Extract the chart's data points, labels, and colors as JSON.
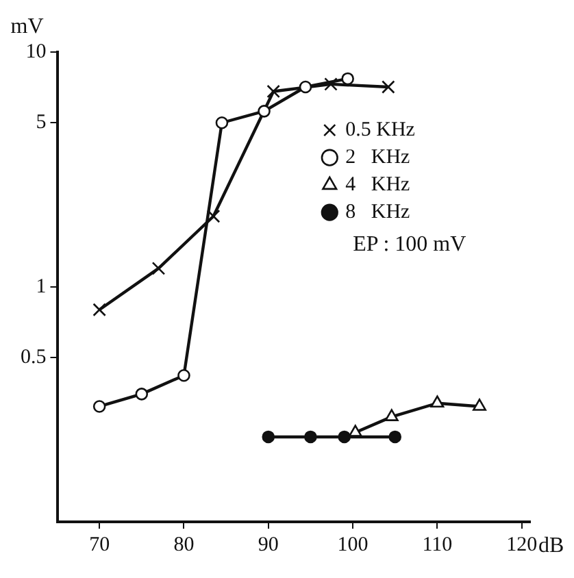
{
  "chart_data": {
    "type": "line",
    "xlabel": "dB",
    "ylabel": "mV",
    "log": "y",
    "xlim": [
      65,
      121
    ],
    "ylim": [
      0.1,
      10
    ],
    "xticks": [
      70,
      80,
      90,
      100,
      110,
      120
    ],
    "yticks": [
      0.5,
      1,
      5,
      10
    ],
    "grid": false,
    "legend": "right",
    "annotations": [
      "EP : 100 mV"
    ],
    "series": [
      {
        "name": "0.5 KHz",
        "color": "#111111",
        "marker": "cross",
        "x": [
          70,
          77,
          83.5,
          90.6,
          97.4,
          104.2
        ],
        "values": [
          0.8,
          1.2,
          2.0,
          6.8,
          7.3,
          7.1
        ]
      },
      {
        "name": "2   KHz",
        "color": "#111111",
        "marker": "circle",
        "x": [
          70,
          75,
          80,
          84.5,
          89.5,
          94.4,
          99.4
        ],
        "values": [
          0.31,
          0.35,
          0.42,
          5.0,
          5.6,
          7.1,
          7.7
        ]
      },
      {
        "name": "4   KHz",
        "color": "#111111",
        "marker": "triangle",
        "x": [
          100.3,
          104.6,
          110,
          115
        ],
        "values": [
          0.24,
          0.28,
          0.32,
          0.31
        ]
      },
      {
        "name": "8   KHz",
        "color": "#111111",
        "marker": "circle-filled",
        "x": [
          90,
          95,
          99,
          105
        ],
        "values": [
          0.23,
          0.23,
          0.23,
          0.23
        ]
      }
    ]
  }
}
